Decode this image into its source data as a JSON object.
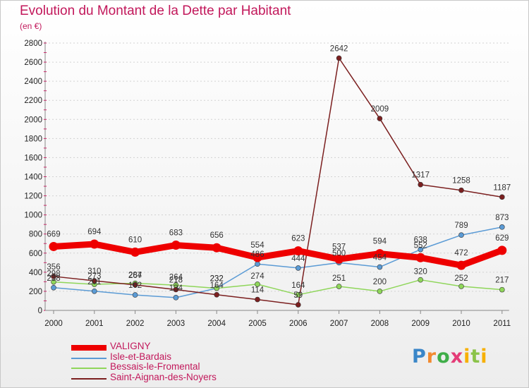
{
  "title": "Evolution du Montant de la Dette par Habitant",
  "unit_label": "(en €)",
  "logo": "Proxiti",
  "chart_data": {
    "type": "line",
    "categories": [
      "2000",
      "2001",
      "2002",
      "2003",
      "2004",
      "2005",
      "2006",
      "2007",
      "2008",
      "2009",
      "2010",
      "2011"
    ],
    "ylim": [
      0,
      2800
    ],
    "yticks": [
      0,
      200,
      400,
      600,
      800,
      1000,
      1200,
      1400,
      1600,
      1800,
      2000,
      2200,
      2400,
      2600,
      2800
    ],
    "grid": true,
    "legend_position": "bottom-left",
    "series": [
      {
        "name": "VALIGNY",
        "color": "#ee0000",
        "values": [
          669,
          694,
          610,
          683,
          656,
          554,
          623,
          537,
          594,
          552,
          472,
          629
        ]
      },
      {
        "name": "Isle-et-Bardais",
        "color": "#5b9bd5",
        "values": [
          238,
          201,
          162,
          134,
          232,
          486,
          444,
          500,
          454,
          638,
          789,
          873
        ]
      },
      {
        "name": "Bessais-le-Fromental",
        "color": "#8fd65a",
        "values": [
          298,
          273,
          284,
          264,
          232,
          274,
          164,
          251,
          200,
          320,
          252,
          217
        ]
      },
      {
        "name": "Saint-Aignan-des-Noyers",
        "color": "#7b1f1f",
        "values": [
          356,
          310,
          267,
          218,
          164,
          114,
          59,
          2642,
          2009,
          1317,
          1258,
          1187
        ]
      }
    ]
  }
}
